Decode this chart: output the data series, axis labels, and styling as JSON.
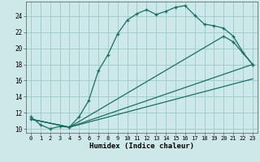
{
  "xlabel": "Humidex (Indice chaleur)",
  "xlim": [
    -0.5,
    23.5
  ],
  "ylim": [
    9.5,
    25.8
  ],
  "xticks": [
    0,
    1,
    2,
    3,
    4,
    5,
    6,
    7,
    8,
    9,
    10,
    11,
    12,
    13,
    14,
    15,
    16,
    17,
    18,
    19,
    20,
    21,
    22,
    23
  ],
  "yticks": [
    10,
    12,
    14,
    16,
    18,
    20,
    22,
    24
  ],
  "bg_color": "#cce8e8",
  "line_color": "#1a6e64",
  "grid_color": "#9fcece",
  "line1_x": [
    0,
    1,
    2,
    3,
    4,
    5,
    6,
    7,
    8,
    9,
    10,
    11,
    12,
    13,
    14,
    15,
    16,
    17,
    18,
    19,
    20,
    21,
    22,
    23
  ],
  "line1_y": [
    11.5,
    10.5,
    10.0,
    10.3,
    10.2,
    11.5,
    13.5,
    17.2,
    19.2,
    21.8,
    23.5,
    24.3,
    24.8,
    24.2,
    24.6,
    25.1,
    25.3,
    24.1,
    23.0,
    22.8,
    22.5,
    21.5,
    19.5,
    18.0
  ],
  "line2_x": [
    0,
    4,
    23
  ],
  "line2_y": [
    11.2,
    10.2,
    18.0
  ],
  "line3_x": [
    0,
    4,
    20,
    21,
    23
  ],
  "line3_y": [
    11.2,
    10.2,
    21.5,
    20.8,
    18.0
  ],
  "line4_x": [
    0,
    4,
    23
  ],
  "line4_y": [
    11.2,
    10.2,
    16.2
  ]
}
